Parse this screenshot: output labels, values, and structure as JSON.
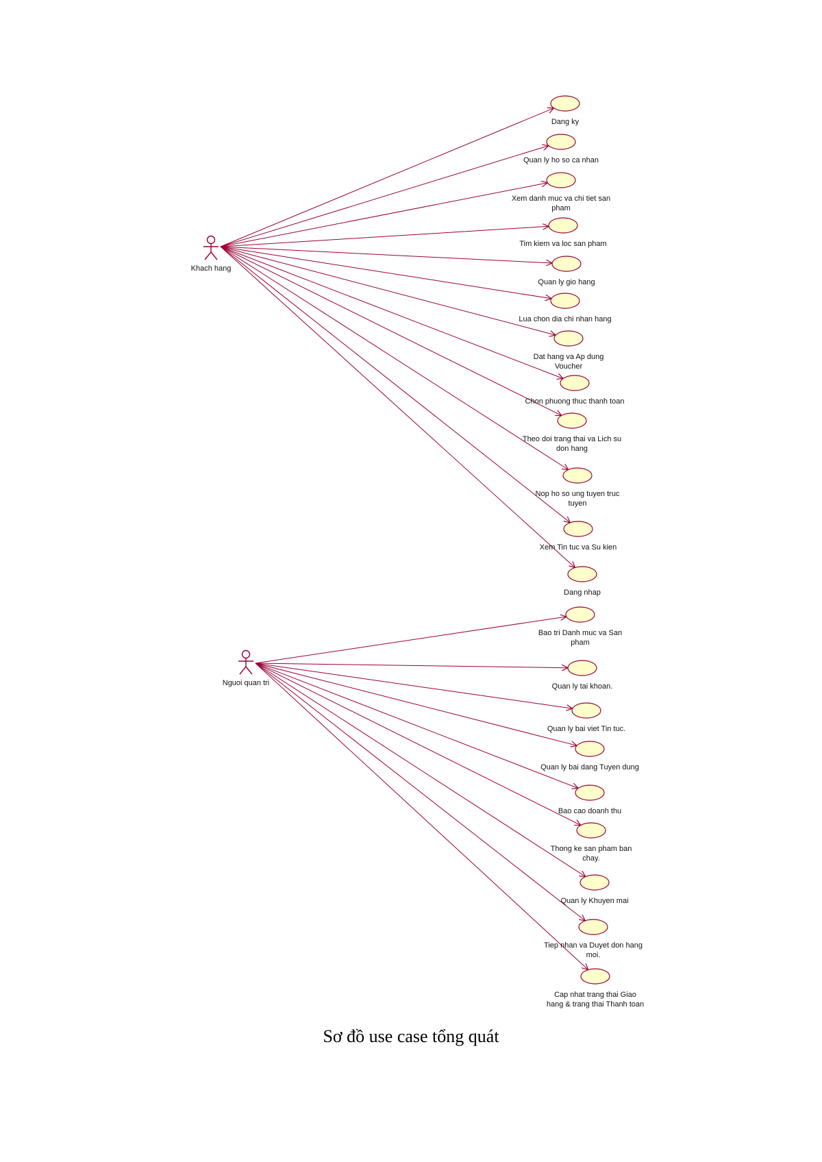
{
  "colors": {
    "line": "#990033",
    "ellipse_fill": "#ffffcc",
    "ellipse_stroke": "#990033",
    "actor_stroke": "#990033"
  },
  "caption": "Sơ đồ use case tổng quát",
  "actors": [
    {
      "id": "khach-hang",
      "name": "Khach hang",
      "icon": "stick-figure-icon",
      "use_cases": [
        {
          "lines": [
            "Dang ky"
          ]
        },
        {
          "lines": [
            "Quan ly ho so ca nhan"
          ]
        },
        {
          "lines": [
            "Xem danh muc va chi tiet san",
            "pham"
          ]
        },
        {
          "lines": [
            "Tim kiem va loc san pham"
          ]
        },
        {
          "lines": [
            "Quan ly gio hang"
          ]
        },
        {
          "lines": [
            "Lua chon dia chi nhan hang"
          ]
        },
        {
          "lines": [
            "Dat hang va Ap dung",
            "Voucher"
          ]
        },
        {
          "lines": [
            "Chon phuong thuc thanh toan"
          ]
        },
        {
          "lines": [
            "Theo doi trang thai va Lich su",
            "don hang"
          ]
        },
        {
          "lines": [
            "Nop ho so ung tuyen truc",
            "tuyen"
          ]
        },
        {
          "lines": [
            "Xem Tin tuc va Su kien"
          ]
        },
        {
          "lines": [
            "Dang nhap"
          ]
        }
      ]
    },
    {
      "id": "nguoi-quan-tri",
      "name": "Nguoi quan tri",
      "icon": "stick-figure-icon",
      "use_cases": [
        {
          "lines": [
            "Bao tri Danh muc va San",
            "pham"
          ]
        },
        {
          "lines": [
            "Quan ly tai khoan."
          ]
        },
        {
          "lines": [
            "Quan ly bai viet Tin tuc."
          ]
        },
        {
          "lines": [
            "Quan ly bai dang Tuyen dung"
          ]
        },
        {
          "lines": [
            "Bao cao doanh thu"
          ]
        },
        {
          "lines": [
            "Thong ke san pham ban",
            "chay."
          ]
        },
        {
          "lines": [
            "Quan ly Khuyen mai"
          ]
        },
        {
          "lines": [
            "Tiep nhan va Duyet don hang",
            "moi."
          ]
        },
        {
          "lines": [
            "Cap nhat trang thai Giao",
            "hang & trang thai Thanh toan"
          ]
        }
      ]
    }
  ]
}
